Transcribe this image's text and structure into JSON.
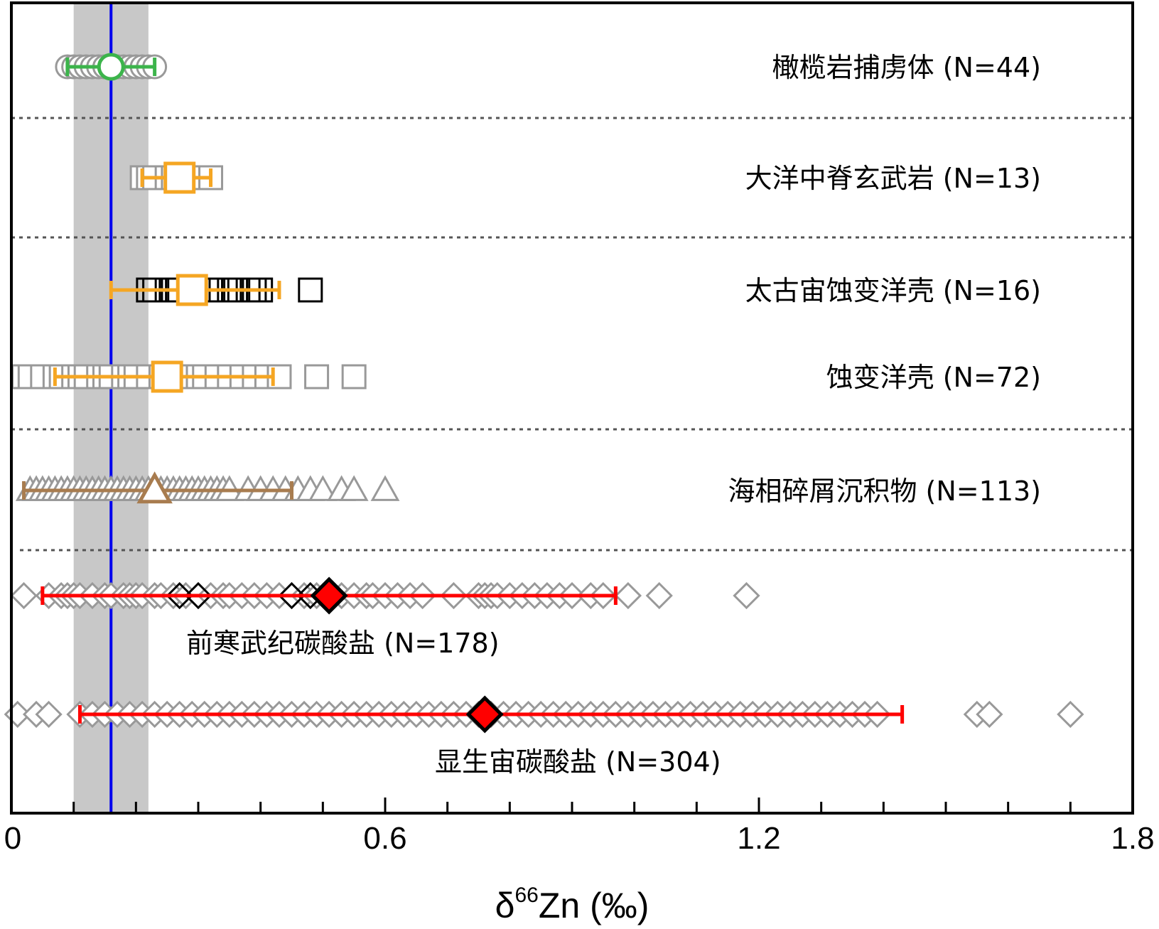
{
  "chart_data": {
    "type": "scatter",
    "title": "",
    "xlabel": "δ66Zn (‰)",
    "xlabel_base": "δ",
    "xlabel_sup": "66",
    "xlabel_rest": "Zn (‰)",
    "ylabel": "",
    "xlim": [
      0,
      1.8
    ],
    "x_ticks": [
      "0",
      "0.6",
      "1.2",
      "1.8"
    ],
    "x_tick_values": [
      0,
      0.6,
      1.2,
      1.8
    ],
    "x_minor_step": 0.1,
    "legend": "none",
    "grid": false,
    "reference": {
      "mean": 0.16,
      "band": [
        0.1,
        0.22
      ],
      "line_color": "#0000ee",
      "band_color": "#c8c8c8"
    },
    "groups": [
      {
        "label": "橄榄岩捕虏体 (N=44)",
        "marker": "circle",
        "color": "#3cb44b",
        "mean": 0.16,
        "range": [
          0.09,
          0.23
        ],
        "points_gray": [
          0.09,
          0.1,
          0.11,
          0.12,
          0.13,
          0.14,
          0.15,
          0.15,
          0.16,
          0.16,
          0.17,
          0.17,
          0.18,
          0.19,
          0.2,
          0.21,
          0.22,
          0.23
        ],
        "points_black": []
      },
      {
        "label": "大洋中脊玄武岩 (N=13)",
        "marker": "square",
        "color": "#f5a623",
        "mean": 0.27,
        "range": [
          0.21,
          0.32
        ],
        "points_gray": [
          0.21,
          0.22,
          0.23,
          0.25,
          0.26,
          0.27,
          0.28,
          0.29,
          0.3,
          0.31,
          0.32
        ],
        "points_black": []
      },
      {
        "label": "太古宙蚀变洋壳 (N=16)",
        "marker": "square",
        "color": "#f5a623",
        "mean": 0.29,
        "range": [
          0.16,
          0.43
        ],
        "points_gray": [],
        "points_black": [
          0.22,
          0.23,
          0.25,
          0.26,
          0.27,
          0.29,
          0.3,
          0.32,
          0.33,
          0.35,
          0.36,
          0.38,
          0.39,
          0.4,
          0.48
        ]
      },
      {
        "label": "蚀变洋壳  (N=72)",
        "marker": "square",
        "color": "#f5a623",
        "mean": 0.25,
        "range": [
          0.07,
          0.42
        ],
        "points_gray": [
          0.02,
          0.03,
          0.05,
          0.07,
          0.08,
          0.1,
          0.11,
          0.12,
          0.14,
          0.15,
          0.16,
          0.18,
          0.19,
          0.2,
          0.22,
          0.24,
          0.26,
          0.28,
          0.3,
          0.31,
          0.33,
          0.35,
          0.37,
          0.39,
          0.41,
          0.43,
          0.49,
          0.55
        ],
        "points_black": []
      },
      {
        "label": "海相碎屑沉积物 (N=113)",
        "marker": "triangle",
        "color": "#a87c4f",
        "mean": 0.23,
        "range": [
          0.02,
          0.45
        ],
        "points_gray": [
          0.03,
          0.04,
          0.05,
          0.06,
          0.07,
          0.08,
          0.09,
          0.1,
          0.11,
          0.12,
          0.13,
          0.14,
          0.15,
          0.16,
          0.17,
          0.18,
          0.19,
          0.2,
          0.21,
          0.22,
          0.23,
          0.24,
          0.25,
          0.26,
          0.27,
          0.28,
          0.29,
          0.3,
          0.31,
          0.32,
          0.33,
          0.34,
          0.35,
          0.38,
          0.4,
          0.42,
          0.44,
          0.46,
          0.48,
          0.5,
          0.53,
          0.55,
          0.6
        ],
        "points_black": []
      },
      {
        "label": "前寒武纪碳酸盐 (N=178)",
        "marker": "diamond",
        "color": "#ff0000",
        "mean": 0.51,
        "range": [
          0.05,
          0.97
        ],
        "points_gray": [
          0.02,
          0.06,
          0.08,
          0.09,
          0.1,
          0.11,
          0.13,
          0.15,
          0.16,
          0.18,
          0.19,
          0.2,
          0.21,
          0.23,
          0.24,
          0.26,
          0.28,
          0.3,
          0.32,
          0.34,
          0.35,
          0.37,
          0.39,
          0.41,
          0.43,
          0.45,
          0.47,
          0.49,
          0.51,
          0.53,
          0.55,
          0.57,
          0.58,
          0.6,
          0.62,
          0.64,
          0.66,
          0.71,
          0.75,
          0.76,
          0.77,
          0.78,
          0.8,
          0.82,
          0.84,
          0.86,
          0.88,
          0.9,
          0.93,
          0.95,
          0.99,
          1.04,
          1.18
        ],
        "points_black": [
          0.27,
          0.3,
          0.45,
          0.48
        ]
      },
      {
        "label": "显生宙碳酸盐  (N=304)",
        "marker": "diamond",
        "color": "#ff0000",
        "mean": 0.76,
        "range": [
          0.11,
          1.43
        ],
        "points_gray": [
          0.01,
          0.04,
          0.06,
          0.11,
          0.13,
          0.15,
          0.17,
          0.19,
          0.21,
          0.23,
          0.25,
          0.27,
          0.29,
          0.31,
          0.33,
          0.35,
          0.37,
          0.39,
          0.41,
          0.43,
          0.45,
          0.47,
          0.49,
          0.51,
          0.53,
          0.55,
          0.57,
          0.59,
          0.61,
          0.63,
          0.65,
          0.67,
          0.69,
          0.71,
          0.73,
          0.75,
          0.77,
          0.79,
          0.81,
          0.83,
          0.85,
          0.87,
          0.89,
          0.91,
          0.93,
          0.95,
          0.97,
          0.99,
          1.01,
          1.03,
          1.05,
          1.07,
          1.09,
          1.11,
          1.13,
          1.15,
          1.17,
          1.19,
          1.21,
          1.23,
          1.25,
          1.27,
          1.29,
          1.31,
          1.33,
          1.35,
          1.37,
          1.39,
          1.55,
          1.57,
          1.7
        ],
        "points_black": []
      }
    ]
  }
}
